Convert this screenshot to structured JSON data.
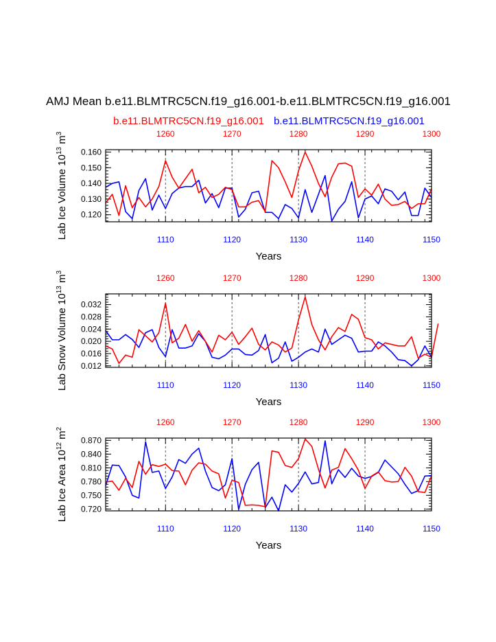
{
  "title": "AMJ Mean b.e11.BLMTRC5CN.f19_g16.001-b.e11.BLMTRC5CN.f19_g16.001",
  "legend": {
    "red_name": "b.e11.BLMTRC5CN.f19_g16.001",
    "blue_name": "b.e11.BLMTRC5CN.f19_g16.001"
  },
  "colors": {
    "red": "#ff0000",
    "blue": "#0000ff",
    "axis": "#000000",
    "grid": "#555555"
  },
  "chart_data": [
    {
      "type": "line",
      "ylabel_text": "Lab Ice Volume 10",
      "ylabel_exp": "13",
      "ylabel_unit": " m",
      "ylabel_unit_exp": "3",
      "xlabel": "Years",
      "ylim": [
        0.1155,
        0.1615
      ],
      "yticks": [
        0.12,
        0.13,
        0.14,
        0.15,
        0.16
      ],
      "ytick_labels": [
        "0.120",
        "0.130",
        "0.140",
        "0.150",
        "0.160"
      ],
      "xlim_bottom": [
        1101,
        1150
      ],
      "xticks_bottom": [
        1110,
        1120,
        1130,
        1140,
        1150
      ],
      "xlim_top": [
        1251,
        1300
      ],
      "xticks_top": [
        1260,
        1270,
        1280,
        1290,
        1300
      ],
      "grid_x_dashed": [
        1110,
        1120,
        1130,
        1140
      ],
      "series": [
        {
          "color": "red",
          "x_axis": "top",
          "x_start": 1251,
          "values": [
            0.1275,
            0.133,
            0.1195,
            0.1385,
            0.1245,
            0.131,
            0.125,
            0.13,
            0.138,
            0.1545,
            0.144,
            0.137,
            0.143,
            0.149,
            0.134,
            0.1375,
            0.131,
            0.133,
            0.1375,
            0.136,
            0.125,
            0.125,
            0.128,
            0.129,
            0.122,
            0.1545,
            0.15,
            0.141,
            0.131,
            0.148,
            0.16,
            0.151,
            0.14,
            0.1315,
            0.144,
            0.1525,
            0.153,
            0.151,
            0.131,
            0.1365,
            0.1325,
            0.1395,
            0.13,
            0.126,
            0.1265,
            0.1285,
            0.124,
            0.127,
            0.127,
            0.1365
          ]
        },
        {
          "color": "blue",
          "x_axis": "bottom",
          "x_start": 1101,
          "values": [
            0.1375,
            0.14,
            0.141,
            0.122,
            0.1175,
            0.1355,
            0.143,
            0.123,
            0.1325,
            0.124,
            0.1335,
            0.137,
            0.138,
            0.138,
            0.142,
            0.1275,
            0.1335,
            0.1245,
            0.137,
            0.137,
            0.1185,
            0.1235,
            0.134,
            0.135,
            0.1215,
            0.1215,
            0.1175,
            0.1265,
            0.124,
            0.118,
            0.136,
            0.1215,
            0.133,
            0.145,
            0.116,
            0.1235,
            0.1285,
            0.141,
            0.118,
            0.13,
            0.132,
            0.127,
            0.1365,
            0.135,
            0.1295,
            0.1345,
            0.1195,
            0.1195,
            0.137,
            0.131
          ]
        }
      ]
    },
    {
      "type": "line",
      "ylabel_text": "Lab Snow Volume 10",
      "ylabel_exp": "13",
      "ylabel_unit": " m",
      "ylabel_unit_exp": "3",
      "xlabel": "Years",
      "ylim": [
        0.0115,
        0.0355
      ],
      "yticks": [
        0.012,
        0.016,
        0.02,
        0.024,
        0.028,
        0.032
      ],
      "ytick_labels": [
        "0.012",
        "0.016",
        "0.020",
        "0.024",
        "0.028",
        "0.032"
      ],
      "xlim_bottom": [
        1101,
        1150
      ],
      "xticks_bottom": [
        1110,
        1120,
        1130,
        1140,
        1150
      ],
      "xlim_top": [
        1251,
        1300
      ],
      "xticks_top": [
        1260,
        1270,
        1280,
        1290,
        1300
      ],
      "grid_x_dashed": [
        1110,
        1120,
        1130,
        1140
      ],
      "series": [
        {
          "color": "red",
          "x_axis": "top",
          "x_start": 1251,
          "values": [
            0.0185,
            0.0175,
            0.0128,
            0.0155,
            0.0148,
            0.0238,
            0.0218,
            0.0198,
            0.0228,
            0.0325,
            0.0195,
            0.021,
            0.0255,
            0.02,
            0.0235,
            0.02,
            0.0165,
            0.022,
            0.0205,
            0.023,
            0.019,
            0.0215,
            0.0243,
            0.019,
            0.0172,
            0.0198,
            0.0188,
            0.0165,
            0.0178,
            0.027,
            0.0345,
            0.0255,
            0.0205,
            0.0172,
            0.0215,
            0.0245,
            0.0232,
            0.0288,
            0.0272,
            0.0212,
            0.0205,
            0.0175,
            0.0195,
            0.019,
            0.0185,
            0.0185,
            0.0215,
            0.0145,
            0.0158,
            0.0148,
            0.0258
          ]
        },
        {
          "color": "blue",
          "x_axis": "bottom",
          "x_start": 1101,
          "values": [
            0.0235,
            0.0205,
            0.0205,
            0.0222,
            0.0206,
            0.018,
            0.0228,
            0.0238,
            0.018,
            0.015,
            0.0238,
            0.0178,
            0.0178,
            0.0185,
            0.0225,
            0.02,
            0.0148,
            0.0143,
            0.0155,
            0.0175,
            0.0175,
            0.0157,
            0.0155,
            0.017,
            0.0222,
            0.013,
            0.0145,
            0.0198,
            0.0135,
            0.0148,
            0.0165,
            0.0175,
            0.0165,
            0.024,
            0.019,
            0.0205,
            0.022,
            0.021,
            0.0165,
            0.0168,
            0.0168,
            0.0198,
            0.0185,
            0.0165,
            0.014,
            0.0137,
            0.012,
            0.014,
            0.0185,
            0.0148
          ]
        }
      ]
    },
    {
      "type": "line",
      "ylabel_text": "Lab Ice Area 10",
      "ylabel_exp": "12",
      "ylabel_unit": " m",
      "ylabel_unit_exp": "2",
      "xlabel": "Years",
      "ylim": [
        0.716,
        0.875
      ],
      "yticks": [
        0.72,
        0.75,
        0.78,
        0.81,
        0.84,
        0.87
      ],
      "ytick_labels": [
        "0.720",
        "0.750",
        "0.780",
        "0.810",
        "0.840",
        "0.870"
      ],
      "xlim_bottom": [
        1101,
        1150
      ],
      "xticks_bottom": [
        1110,
        1120,
        1130,
        1140,
        1150
      ],
      "xlim_top": [
        1251,
        1300
      ],
      "xticks_top": [
        1260,
        1270,
        1280,
        1290,
        1300
      ],
      "grid_x_dashed": [
        1110,
        1120,
        1130,
        1140
      ],
      "series": [
        {
          "color": "red",
          "x_axis": "top",
          "x_start": 1251,
          "values": [
            0.779,
            0.781,
            0.761,
            0.787,
            0.767,
            0.824,
            0.796,
            0.817,
            0.813,
            0.818,
            0.804,
            0.803,
            0.773,
            0.805,
            0.821,
            0.818,
            0.803,
            0.797,
            0.744,
            0.783,
            0.778,
            0.728,
            0.729,
            0.728,
            0.725,
            0.847,
            0.844,
            0.815,
            0.811,
            0.83,
            0.873,
            0.857,
            0.807,
            0.766,
            0.805,
            0.811,
            0.852,
            0.83,
            0.805,
            0.765,
            0.792,
            0.801,
            0.782,
            0.779,
            0.78,
            0.811,
            0.792,
            0.758,
            0.756,
            0.792
          ]
        },
        {
          "color": "blue",
          "x_axis": "bottom",
          "x_start": 1101,
          "values": [
            0.771,
            0.816,
            0.815,
            0.79,
            0.75,
            0.744,
            0.867,
            0.8,
            0.803,
            0.765,
            0.79,
            0.828,
            0.82,
            0.84,
            0.853,
            0.803,
            0.767,
            0.76,
            0.773,
            0.83,
            0.719,
            0.774,
            0.806,
            0.822,
            0.723,
            0.746,
            0.716,
            0.773,
            0.757,
            0.776,
            0.801,
            0.775,
            0.778,
            0.869,
            0.775,
            0.806,
            0.789,
            0.809,
            0.792,
            0.787,
            0.791,
            0.8,
            0.827,
            0.812,
            0.797,
            0.774,
            0.754,
            0.76,
            0.792,
            0.793
          ]
        }
      ]
    }
  ]
}
